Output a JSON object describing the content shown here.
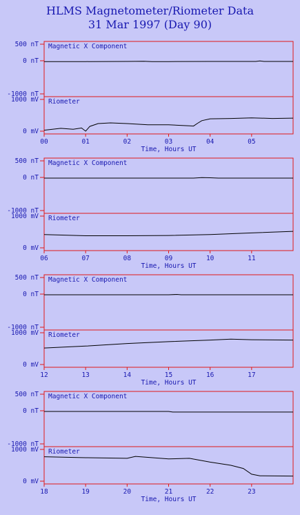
{
  "title": "HLMS Magnetometer/Riometer Data",
  "subtitle": "31 Mar 1997 (Day 90)",
  "colors": {
    "background": "#c8c8f8",
    "text": "#1818b0",
    "frame": "#e01818",
    "trace": "#000000"
  },
  "chart_data": [
    {
      "type": "line",
      "xlabel": "Time, Hours UT",
      "x_range": [
        0,
        6
      ],
      "x_ticks": [
        "00",
        "01",
        "02",
        "03",
        "04",
        "05"
      ],
      "panels": [
        {
          "label": "Magnetic X Component",
          "unit": "nT",
          "y_tick_labels": [
            "500 nT",
            "0 nT",
            "-1000 nT"
          ],
          "ylim": [
            -1000,
            500
          ],
          "series": {
            "x": [
              0,
              1,
              2,
              2.4,
              2.6,
              3,
              4,
              5.1,
              5.2,
              5.3,
              6
            ],
            "y": [
              -25,
              -25,
              -20,
              -15,
              -25,
              -25,
              -20,
              -20,
              -5,
              -20,
              -20
            ]
          }
        },
        {
          "label": "Riometer",
          "unit": "mV",
          "y_tick_labels": [
            "1000 mV",
            "0 mV"
          ],
          "ylim": [
            0,
            1000
          ],
          "series": {
            "x": [
              0,
              0.4,
              0.7,
              0.9,
              1.0,
              1.1,
              1.3,
              1.6,
              2,
              2.5,
              3,
              3.5,
              3.6,
              3.7,
              3.8,
              4,
              4.5,
              5,
              5.5,
              6
            ],
            "y": [
              30,
              90,
              60,
              100,
              0,
              150,
              240,
              260,
              240,
              200,
              200,
              170,
              160,
              250,
              330,
              390,
              400,
              420,
              400,
              410
            ]
          }
        }
      ]
    },
    {
      "type": "line",
      "xlabel": "Time, Hours UT",
      "x_range": [
        6,
        12
      ],
      "x_ticks": [
        "06",
        "07",
        "08",
        "09",
        "10",
        "11"
      ],
      "panels": [
        {
          "label": "Magnetic X Component",
          "unit": "nT",
          "y_tick_labels": [
            "500 nT",
            "0 nT",
            "-1000 nT"
          ],
          "ylim": [
            -1000,
            500
          ],
          "series": {
            "x": [
              6,
              8,
              9.6,
              9.8,
              10,
              10.2,
              12
            ],
            "y": [
              -20,
              -20,
              -20,
              -5,
              -10,
              -20,
              -20
            ]
          }
        },
        {
          "label": "Riometer",
          "unit": "mV",
          "y_tick_labels": [
            "1000 mV",
            "0 mV"
          ],
          "ylim": [
            0,
            1000
          ],
          "series": {
            "x": [
              6,
              7,
              8,
              9,
              10,
              11,
              12
            ],
            "y": [
              420,
              380,
              380,
              390,
              420,
              470,
              520
            ]
          }
        }
      ]
    },
    {
      "type": "line",
      "xlabel": "Time, Hours UT",
      "x_range": [
        12,
        18
      ],
      "x_ticks": [
        "12",
        "13",
        "14",
        "15",
        "16",
        "17"
      ],
      "panels": [
        {
          "label": "Magnetic X Component",
          "unit": "nT",
          "y_tick_labels": [
            "500 nT",
            "0 nT",
            "-1000 nT"
          ],
          "ylim": [
            -1000,
            500
          ],
          "series": {
            "x": [
              12,
              13.5,
              15,
              15.2,
              15.3,
              15.5,
              18
            ],
            "y": [
              -20,
              -20,
              -20,
              -10,
              -20,
              -20,
              -20
            ]
          }
        },
        {
          "label": "Riometer",
          "unit": "mV",
          "y_tick_labels": [
            "1000 mV",
            "0 mV"
          ],
          "ylim": [
            0,
            1000
          ],
          "series": {
            "x": [
              12,
              13,
              14,
              15,
              16,
              16.5,
              17,
              18
            ],
            "y": [
              520,
              580,
              660,
              720,
              770,
              800,
              780,
              770
            ]
          }
        }
      ]
    },
    {
      "type": "line",
      "xlabel": "Time, Hours UT",
      "x_range": [
        18,
        24
      ],
      "x_ticks": [
        "18",
        "19",
        "20",
        "21",
        "22",
        "23"
      ],
      "panels": [
        {
          "label": "Magnetic X Component",
          "unit": "nT",
          "y_tick_labels": [
            "500 nT",
            "0 nT",
            "-1000 nT"
          ],
          "ylim": [
            -1000,
            500
          ],
          "series": {
            "x": [
              18,
              20,
              21,
              21.1,
              22,
              24
            ],
            "y": [
              -20,
              -20,
              -20,
              -40,
              -40,
              -40
            ]
          }
        },
        {
          "label": "Riometer",
          "unit": "mV",
          "y_tick_labels": [
            "1000 mV",
            "0 mV"
          ],
          "ylim": [
            0,
            1000
          ],
          "series": {
            "x": [
              18,
              19,
              20,
              20.2,
              21,
              21.5,
              22,
              22.5,
              22.8,
              23,
              23.2,
              24
            ],
            "y": [
              770,
              740,
              720,
              780,
              700,
              720,
              600,
              500,
              400,
              220,
              170,
              160
            ]
          }
        }
      ]
    }
  ]
}
